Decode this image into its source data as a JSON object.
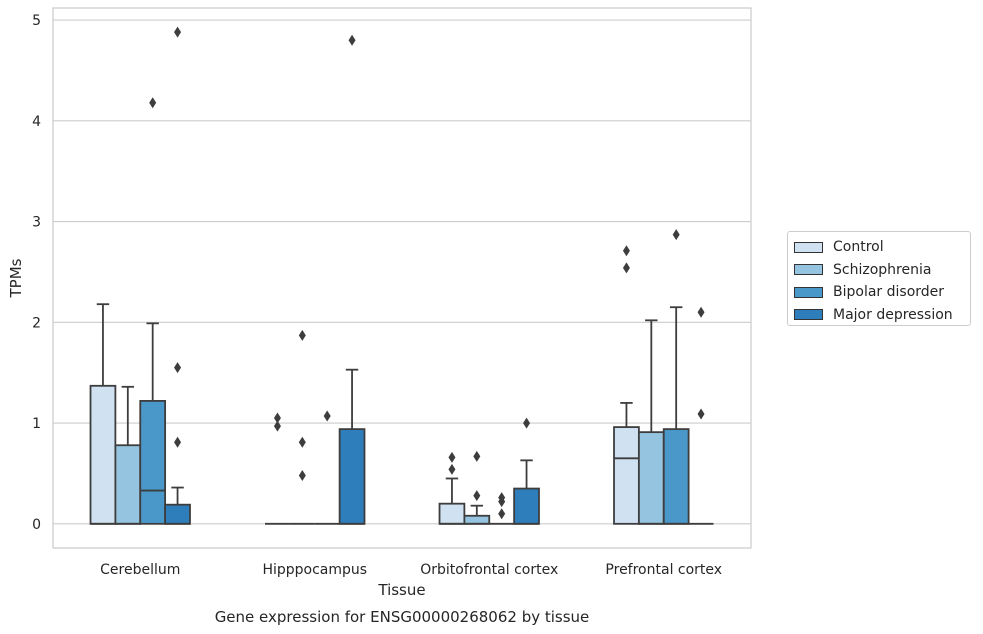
{
  "chart_data": {
    "type": "box",
    "title": "",
    "caption": "Gene expression for ENSG00000268062 by tissue",
    "xlabel": "Tissue",
    "ylabel": "TPMs",
    "ylim": [
      -0.24,
      5.12
    ],
    "yticks": [
      0,
      1,
      2,
      3,
      4,
      5
    ],
    "grid": true,
    "legend_position": "right",
    "categories": [
      "Cerebellum",
      "Hipppocampus",
      "Orbitofrontal cortex",
      "Prefrontal cortex"
    ],
    "series": [
      {
        "name": "Control",
        "color": "#d0e1f2",
        "boxes": [
          {
            "q1": 0,
            "median": 0,
            "q3": 1.37,
            "whisker_low": 0,
            "whisker_high": 2.18,
            "outliers": []
          },
          {
            "q1": 0,
            "median": 0,
            "q3": 0,
            "whisker_low": 0,
            "whisker_high": 0,
            "outliers": [
              0.97,
              1.05
            ]
          },
          {
            "q1": 0,
            "median": 0,
            "q3": 0.2,
            "whisker_low": 0,
            "whisker_high": 0.45,
            "outliers": [
              0.54,
              0.66
            ]
          },
          {
            "q1": 0,
            "median": 0.65,
            "q3": 0.96,
            "whisker_low": 0,
            "whisker_high": 1.2,
            "outliers": [
              2.54,
              2.71
            ]
          }
        ]
      },
      {
        "name": "Schizophrenia",
        "color": "#94c4df",
        "boxes": [
          {
            "q1": 0,
            "median": 0,
            "q3": 0.78,
            "whisker_low": 0,
            "whisker_high": 1.36,
            "outliers": []
          },
          {
            "q1": 0,
            "median": 0,
            "q3": 0,
            "whisker_low": 0,
            "whisker_high": 0,
            "outliers": [
              0.48,
              0.81,
              1.87
            ]
          },
          {
            "q1": 0,
            "median": 0,
            "q3": 0.08,
            "whisker_low": 0,
            "whisker_high": 0.18,
            "outliers": [
              0.28,
              0.67
            ]
          },
          {
            "q1": 0,
            "median": 0,
            "q3": 0.91,
            "whisker_low": 0,
            "whisker_high": 2.02,
            "outliers": []
          }
        ]
      },
      {
        "name": "Bipolar disorder",
        "color": "#4a98c9",
        "boxes": [
          {
            "q1": 0,
            "median": 0.33,
            "q3": 1.22,
            "whisker_low": 0,
            "whisker_high": 1.99,
            "outliers": [
              4.18
            ]
          },
          {
            "q1": 0,
            "median": 0,
            "q3": 0,
            "whisker_low": 0,
            "whisker_high": 0,
            "outliers": [
              1.07
            ]
          },
          {
            "q1": 0,
            "median": 0,
            "q3": 0,
            "whisker_low": 0,
            "whisker_high": 0,
            "outliers": [
              0.1,
              0.22,
              0.26
            ]
          },
          {
            "q1": 0,
            "median": 0,
            "q3": 0.94,
            "whisker_low": 0,
            "whisker_high": 2.15,
            "outliers": [
              2.87
            ]
          }
        ]
      },
      {
        "name": "Major depression",
        "color": "#2e7ebc",
        "boxes": [
          {
            "q1": 0,
            "median": 0,
            "q3": 0.19,
            "whisker_low": 0,
            "whisker_high": 0.36,
            "outliers": [
              0.81,
              1.55,
              4.88
            ]
          },
          {
            "q1": 0,
            "median": 0,
            "q3": 0.94,
            "whisker_low": 0,
            "whisker_high": 1.53,
            "outliers": [
              4.8
            ]
          },
          {
            "q1": 0,
            "median": 0,
            "q3": 0.35,
            "whisker_low": 0,
            "whisker_high": 0.63,
            "outliers": [
              1.0
            ]
          },
          {
            "q1": 0,
            "median": 0,
            "q3": 0,
            "whisker_low": 0,
            "whisker_high": 0,
            "outliers": [
              1.09,
              2.1
            ]
          }
        ]
      }
    ]
  }
}
